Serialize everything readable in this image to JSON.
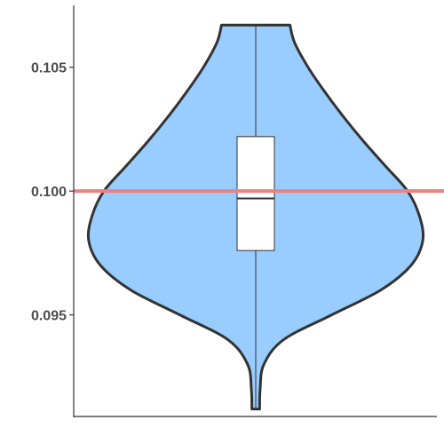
{
  "chart_data": {
    "type": "violin",
    "title": "",
    "xlabel": "",
    "ylabel": "",
    "ylim": [
      0.0909,
      0.1075
    ],
    "yticks": [
      0.095,
      0.1,
      0.105
    ],
    "ytick_labels": [
      "0.095",
      "0.100",
      "0.105"
    ],
    "grid": false,
    "violin": {
      "y_min": 0.0912,
      "y_max": 0.1067,
      "profile": [
        {
          "y": 0.0912,
          "half_width": 0.023
        },
        {
          "y": 0.092,
          "half_width": 0.026
        },
        {
          "y": 0.093,
          "half_width": 0.048
        },
        {
          "y": 0.094,
          "half_width": 0.165
        },
        {
          "y": 0.095,
          "half_width": 0.45
        },
        {
          "y": 0.096,
          "half_width": 0.74
        },
        {
          "y": 0.097,
          "half_width": 0.92
        },
        {
          "y": 0.098,
          "half_width": 0.99
        },
        {
          "y": 0.099,
          "half_width": 0.97
        },
        {
          "y": 0.1,
          "half_width": 0.9
        },
        {
          "y": 0.101,
          "half_width": 0.77
        },
        {
          "y": 0.102,
          "half_width": 0.64
        },
        {
          "y": 0.103,
          "half_width": 0.52
        },
        {
          "y": 0.104,
          "half_width": 0.41
        },
        {
          "y": 0.105,
          "half_width": 0.31
        },
        {
          "y": 0.106,
          "half_width": 0.23
        },
        {
          "y": 0.1067,
          "half_width": 0.203
        }
      ]
    },
    "box": {
      "q1": 0.0976,
      "median": 0.0997,
      "q3": 0.1022,
      "whisker_low": 0.0912,
      "whisker_high": 0.1067
    },
    "reference_line": {
      "y": 0.1
    }
  },
  "colors": {
    "violin_fill": "#99ccff",
    "violin_stroke": "#333333",
    "box_fill": "#ffffff",
    "box_stroke": "#333333",
    "reference_line": "#f08080",
    "axis": "#333333",
    "tick_label": "#4d4d4d"
  }
}
